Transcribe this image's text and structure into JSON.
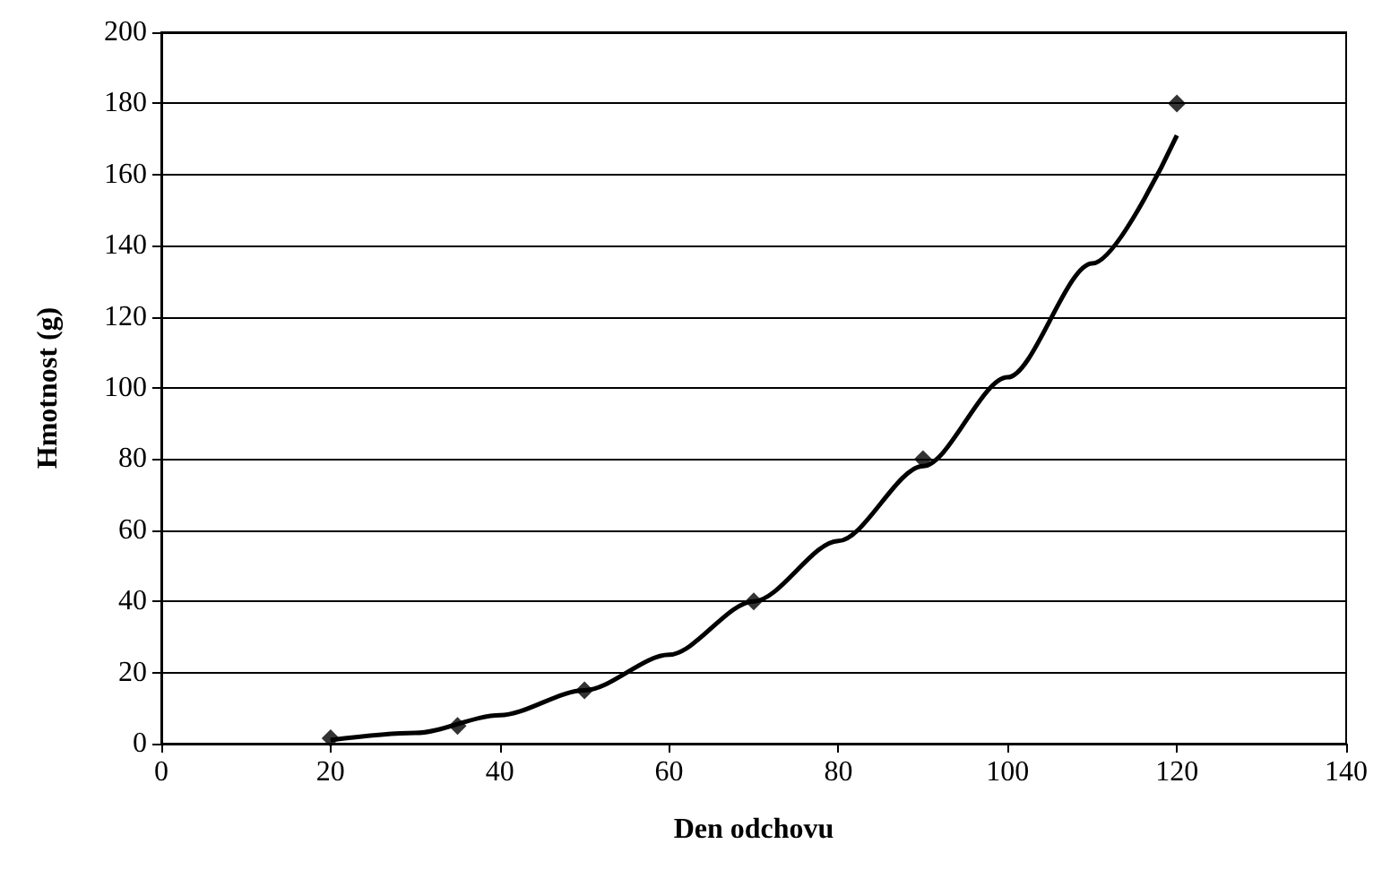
{
  "chart_data": {
    "type": "scatter",
    "xlabel": "Den odchovu",
    "ylabel": "Hmotnost (g)",
    "x": [
      20,
      35,
      50,
      70,
      90,
      120
    ],
    "series": [
      {
        "type": "scatter",
        "color": "#000000",
        "marker": "diamond",
        "values": [
          1.5,
          5,
          15,
          40,
          80,
          180
        ]
      },
      {
        "type": "line",
        "color": "#000000",
        "marker": "none",
        "line_style": "solid",
        "x": [
          20,
          30,
          40,
          50,
          60,
          70,
          80,
          90,
          100,
          110,
          120
        ],
        "values": [
          1,
          3,
          8,
          15,
          25,
          40,
          57,
          78,
          103,
          135,
          171
        ]
      }
    ],
    "xlim": [
      0,
      140
    ],
    "xticks": [
      0,
      20,
      40,
      60,
      80,
      100,
      120,
      140
    ],
    "ylim": [
      0,
      200
    ],
    "yticks": [
      0,
      20,
      40,
      60,
      80,
      100,
      120,
      140,
      160,
      180,
      200
    ],
    "grid": "y"
  }
}
